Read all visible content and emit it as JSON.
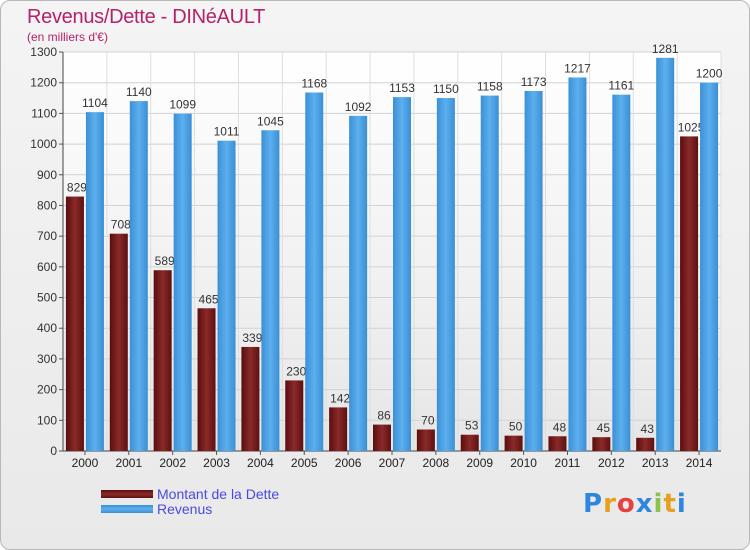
{
  "header": {
    "title": "Revenus/Dette - DINéAULT",
    "subtitle": "(en milliers d'€)"
  },
  "chart_data": {
    "type": "bar",
    "categories": [
      "2000",
      "2001",
      "2002",
      "2003",
      "2004",
      "2005",
      "2006",
      "2007",
      "2008",
      "2009",
      "2010",
      "2011",
      "2012",
      "2013",
      "2014"
    ],
    "series": [
      {
        "name": "Montant de la Dette",
        "color": "#7a1e1e",
        "values": [
          829,
          708,
          589,
          465,
          339,
          230,
          142,
          86,
          70,
          53,
          50,
          48,
          45,
          43,
          1025
        ],
        "value_labels": [
          "829",
          "708",
          "589",
          "465",
          "339",
          "230",
          "142",
          "86",
          "70",
          "53",
          "50",
          "48",
          "45",
          "43",
          "1025"
        ]
      },
      {
        "name": "Revenus",
        "color": "#4aa3e6",
        "values": [
          1104,
          1140,
          1099,
          1011,
          1045,
          1168,
          1092,
          1153,
          1150,
          1158,
          1173,
          1217,
          1161,
          1281,
          1200
        ],
        "value_labels": [
          "1104",
          "1140",
          "1099",
          "1011",
          "1045",
          "1168",
          "1092",
          "1153",
          "1150",
          "1158",
          "1173",
          "1217",
          "1161",
          "1281",
          "1200"
        ]
      }
    ],
    "ylim": [
      0,
      1300
    ],
    "yticks": [
      0,
      100,
      200,
      300,
      400,
      500,
      600,
      700,
      800,
      900,
      1000,
      1100,
      1200,
      1300
    ],
    "grid": true,
    "legend": "bottom-left"
  },
  "logo": {
    "letters": [
      "P",
      "r",
      "o",
      "x",
      "i",
      "t",
      "i"
    ],
    "colors": [
      "#2e86de",
      "#e8a020",
      "#e84040",
      "#2e86de",
      "#8bc34a",
      "#e8a020",
      "#2e86de"
    ]
  }
}
